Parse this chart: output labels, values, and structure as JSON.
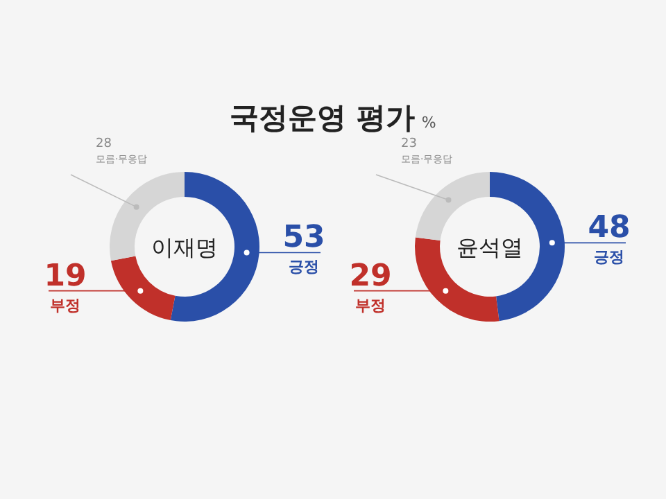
{
  "chart_data": [
    {
      "type": "other",
      "title": "국정운영 평가",
      "subtitle": "%"
    },
    {
      "type": "donut",
      "annotations": [
        "이재명"
      ],
      "categories": [
        "긍정",
        "부정",
        "모름·무응답"
      ],
      "values": [
        53,
        19,
        28
      ],
      "colors": [
        "#2a4fa8",
        "#c0302a",
        "#d6d6d6"
      ],
      "data_labels": true
    },
    {
      "type": "donut",
      "annotations": [
        "윤석열"
      ],
      "categories": [
        "긍정",
        "부정",
        "모름·무응답"
      ],
      "values": [
        48,
        29,
        23
      ],
      "colors": [
        "#2a4fa8",
        "#c0302a",
        "#d6d6d6"
      ],
      "data_labels": true
    }
  ]
}
